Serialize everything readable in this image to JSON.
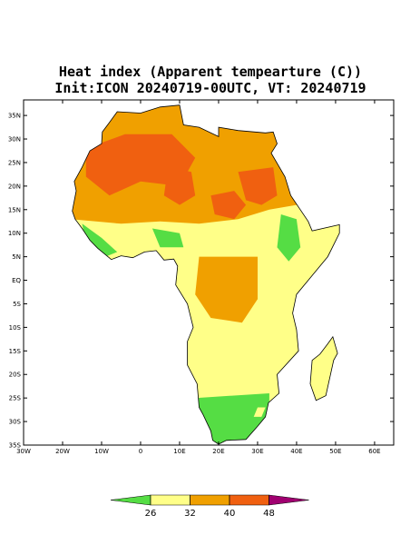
{
  "title": "Heat index (Apparent tempearture (C))",
  "subtitle": "Init:ICON 20240719-00UTC, VT: 20240719",
  "map": {
    "xlim": [
      -30,
      64.9
    ],
    "ylim": [
      -35,
      38.3
    ],
    "xticks": [
      {
        "value": -30,
        "label": "30W"
      },
      {
        "value": -20,
        "label": "20W"
      },
      {
        "value": -10,
        "label": "10W"
      },
      0,
      {
        "value": 10,
        "label": "10E"
      },
      {
        "value": 20,
        "label": "20E"
      },
      {
        "value": 30,
        "label": "30E"
      },
      {
        "value": 40,
        "label": "40E"
      },
      {
        "value": 50,
        "label": "50E"
      },
      {
        "value": 60,
        "label": "60E"
      }
    ],
    "yticks": [
      {
        "value": 35,
        "label": "35N"
      },
      {
        "value": 30,
        "label": "30N"
      },
      {
        "value": 25,
        "label": "25N"
      },
      {
        "value": 20,
        "label": "20N"
      },
      {
        "value": 15,
        "label": "15N"
      },
      {
        "value": 10,
        "label": "10N"
      },
      {
        "value": 5,
        "label": "5N"
      },
      {
        "value": 0,
        "label": "EQ"
      },
      {
        "value": -5,
        "label": "5S"
      },
      {
        "value": -10,
        "label": "10S"
      },
      {
        "value": -15,
        "label": "15S"
      },
      {
        "value": -20,
        "label": "20S"
      },
      {
        "value": -25,
        "label": "25S"
      },
      {
        "value": -30,
        "label": "30S"
      },
      {
        "value": -35,
        "label": "35S"
      }
    ]
  },
  "colorbar": {
    "levels": [
      26,
      32,
      40,
      48
    ],
    "colors": [
      "#55dd44",
      "#ffff88",
      "#f0a000",
      "#f06010",
      "#a00070"
    ]
  }
}
